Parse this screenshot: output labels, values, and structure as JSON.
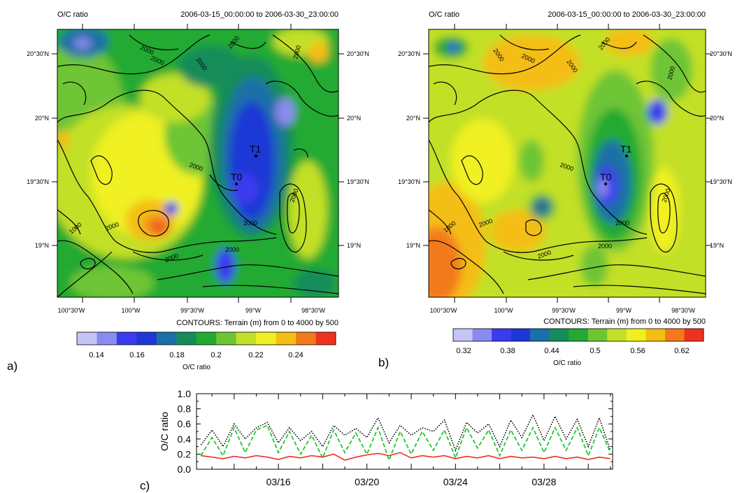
{
  "panels": [
    {
      "id": "a",
      "panel_label": "a)",
      "title_left": "O/C ratio",
      "title_right": "2006-03-15_00:00:00 to 2006-03-30_23:00:00",
      "lon_ticks": [
        "100°30'W",
        "100°W",
        "99°30'W",
        "99°W",
        "98°30'W"
      ],
      "lat_ticks": [
        "20°30'N",
        "20°N",
        "19°30'N",
        "19°N"
      ],
      "contour_note": "CONTOURS: Terrain (m) from 0 to 4000 by 500",
      "contour_labels": [
        "2000",
        "2000",
        "2000",
        "2000",
        "2000",
        "2000",
        "1000",
        "2000",
        "2000",
        "2000",
        "2000",
        "2000"
      ],
      "station_labels": [
        "T1",
        "T0"
      ],
      "colorbar_title": "O/C ratio",
      "colorbar_ticks": [
        "0.14",
        "0.16",
        "0.18",
        "0.2",
        "0.22",
        "0.24"
      ],
      "colorbar_colors": [
        "#c4c4f5",
        "#8a8af0",
        "#3a3aef",
        "#1e38d6",
        "#1a70a8",
        "#168c5a",
        "#22aa32",
        "#6ec534",
        "#c2e028",
        "#f0f020",
        "#f4be14",
        "#f27a1a",
        "#ee3220"
      ]
    },
    {
      "id": "b",
      "panel_label": "b)",
      "title_left": "O/C ratio",
      "title_right": "2006-03-15_00:00:00 to 2006-03-30_23:00:00",
      "lon_ticks": [
        "100°30'W",
        "100°W",
        "99°30'W",
        "99°W",
        "98°30'W"
      ],
      "lat_ticks": [
        "20°30'N",
        "20°N",
        "19°30'N",
        "19°N"
      ],
      "contour_note": "CONTOURS: Terrain (m) from 0 to 4000 by 500",
      "contour_labels": [
        "2000",
        "2000",
        "2000",
        "2000",
        "2000",
        "2000",
        "1000",
        "2000",
        "2000",
        "2000",
        "2000",
        "2000"
      ],
      "station_labels": [
        "T1",
        "T0"
      ],
      "colorbar_title": "O/C ratio",
      "colorbar_ticks": [
        "0.32",
        "0.38",
        "0.44",
        "0.5",
        "0.56",
        "0.62"
      ],
      "colorbar_colors": [
        "#c4c4f5",
        "#8a8af0",
        "#3a3aef",
        "#1e38d6",
        "#1a70a8",
        "#168c5a",
        "#22aa32",
        "#6ec534",
        "#c2e028",
        "#f0f020",
        "#f4be14",
        "#f27a1a",
        "#ee3220"
      ]
    }
  ],
  "chart_data": {
    "type": "line",
    "panel_label": "c)",
    "ylabel": "O/C ratio",
    "ylim": [
      0.0,
      1.0
    ],
    "yticks": [
      "0.0",
      "0.2",
      "0.4",
      "0.6",
      "0.8",
      "1.0"
    ],
    "xlim_days": [
      12.3,
      31.1
    ],
    "x_tick_labels": [
      "03/16",
      "03/20",
      "03/24",
      "03/28"
    ],
    "x": [
      12.5,
      13.0,
      13.5,
      14.0,
      14.5,
      15.0,
      15.5,
      16.0,
      16.5,
      17.0,
      17.5,
      18.0,
      18.5,
      19.0,
      19.5,
      20.0,
      20.5,
      21.0,
      21.5,
      22.0,
      22.5,
      23.0,
      23.5,
      24.0,
      24.5,
      25.0,
      25.5,
      26.0,
      26.5,
      27.0,
      27.5,
      28.0,
      28.5,
      29.0,
      29.5,
      30.0,
      30.5,
      31.0
    ],
    "series": [
      {
        "color": "#000000",
        "style": "dotted",
        "values": [
          0.32,
          0.52,
          0.3,
          0.6,
          0.4,
          0.55,
          0.62,
          0.35,
          0.55,
          0.38,
          0.5,
          0.3,
          0.58,
          0.45,
          0.54,
          0.42,
          0.68,
          0.35,
          0.58,
          0.45,
          0.55,
          0.5,
          0.65,
          0.25,
          0.62,
          0.48,
          0.6,
          0.3,
          0.65,
          0.42,
          0.72,
          0.38,
          0.7,
          0.4,
          0.66,
          0.3,
          0.68,
          0.25
        ]
      },
      {
        "color": "#22c832",
        "style": "dashed",
        "values": [
          0.18,
          0.42,
          0.18,
          0.55,
          0.22,
          0.52,
          0.58,
          0.22,
          0.5,
          0.2,
          0.45,
          0.15,
          0.52,
          0.22,
          0.48,
          0.2,
          0.55,
          0.12,
          0.5,
          0.2,
          0.5,
          0.25,
          0.52,
          0.15,
          0.55,
          0.28,
          0.52,
          0.18,
          0.52,
          0.25,
          0.55,
          0.22,
          0.55,
          0.25,
          0.55,
          0.18,
          0.55,
          0.22
        ]
      },
      {
        "color": "#ee3020",
        "style": "solid",
        "values": [
          0.18,
          0.16,
          0.14,
          0.17,
          0.15,
          0.18,
          0.16,
          0.13,
          0.17,
          0.15,
          0.18,
          0.16,
          0.2,
          0.12,
          0.16,
          0.19,
          0.21,
          0.18,
          0.22,
          0.15,
          0.18,
          0.16,
          0.18,
          0.14,
          0.17,
          0.15,
          0.18,
          0.14,
          0.17,
          0.15,
          0.16,
          0.14,
          0.17,
          0.14,
          0.16,
          0.13,
          0.16,
          0.14
        ]
      }
    ]
  }
}
